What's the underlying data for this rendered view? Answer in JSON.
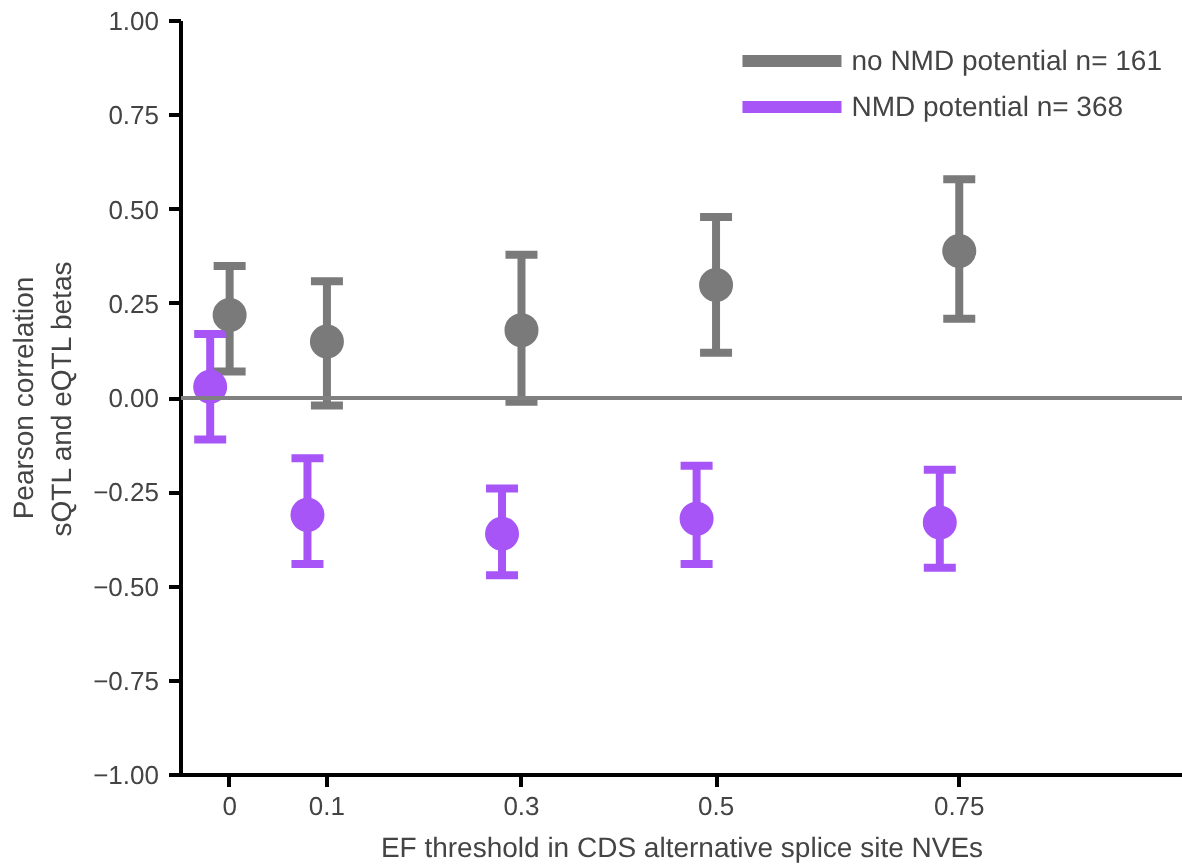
{
  "chart_data": {
    "type": "scatter",
    "xlabel": "EF threshold in CDS alternative splice site NVEs",
    "ylabel": "Pearson correlation\nsQTL and eQTL betas",
    "xlim": [
      -0.05,
      0.98
    ],
    "xticks": [
      0,
      0.1,
      0.3,
      0.5,
      0.75
    ],
    "ylim": [
      -1,
      1
    ],
    "yticks": [
      {
        "value": -1,
        "label": "−1.00"
      },
      {
        "value": -0.75,
        "label": "−0.75"
      },
      {
        "value": -0.5,
        "label": "−0.50"
      },
      {
        "value": -0.25,
        "label": "−0.25"
      },
      {
        "value": 0,
        "label": "0.00"
      },
      {
        "value": 0.25,
        "label": "0.25"
      },
      {
        "value": 0.5,
        "label": "0.50"
      },
      {
        "value": 0.75,
        "label": "0.75"
      },
      {
        "value": 1,
        "label": "1.00"
      }
    ],
    "series": [
      {
        "name": "no NMD potential n= 161",
        "color": "#7a7a7a",
        "x": [
          0.0,
          0.1,
          0.3,
          0.5,
          0.75
        ],
        "values": [
          0.22,
          0.15,
          0.18,
          0.3,
          0.39
        ],
        "errors": [
          [
            0.07,
            0.35
          ],
          [
            -0.02,
            0.31
          ],
          [
            -0.01,
            0.38
          ],
          [
            0.12,
            0.48
          ],
          [
            0.21,
            0.58
          ]
        ]
      },
      {
        "name": "NMD potential n= 368",
        "color": "#a855f7",
        "x": [
          -0.02,
          0.08,
          0.28,
          0.48,
          0.73
        ],
        "values": [
          0.03,
          -0.31,
          -0.36,
          -0.32,
          -0.33
        ],
        "errors": [
          [
            -0.11,
            0.17
          ],
          [
            -0.44,
            -0.16
          ],
          [
            -0.47,
            -0.24
          ],
          [
            -0.44,
            -0.18
          ],
          [
            -0.45,
            -0.19
          ]
        ]
      }
    ],
    "ref_lines": [
      {
        "axis": "y",
        "value": 0,
        "color": "#808080"
      }
    ],
    "grid": false,
    "legend": "top right",
    "marker": "circle"
  }
}
